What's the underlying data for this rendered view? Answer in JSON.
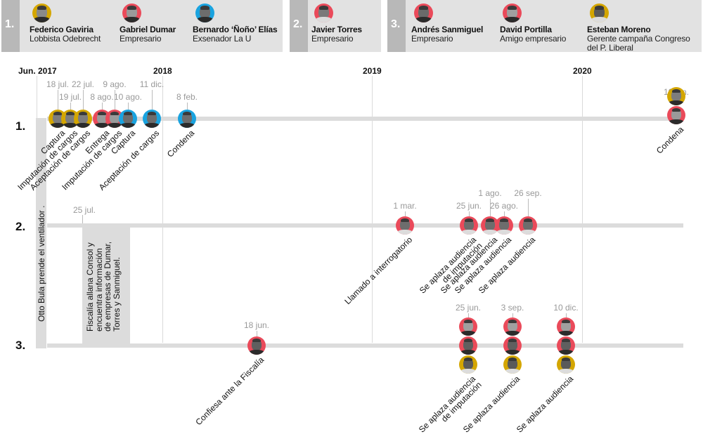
{
  "colors": {
    "gold": "#d4a600",
    "red": "#ea4a5a",
    "blue": "#1aa3df",
    "band": "#dcdcdc",
    "header_bg": "#e2e2e2",
    "number_bg": "#b8b8b8"
  },
  "groups": [
    {
      "number": "1.",
      "people": [
        {
          "name": "Federico Gaviria",
          "role": "Lobbista Odebrecht",
          "color": "gold"
        },
        {
          "name": "Gabriel Dumar",
          "role": "Empresario",
          "color": "red"
        },
        {
          "name": "Bernardo ‘Ñoño’ Elías",
          "role": "Exsenador La U",
          "color": "blue"
        }
      ]
    },
    {
      "number": "2.",
      "people": [
        {
          "name": "Javier Torres",
          "role": "Empresario",
          "color": "red"
        }
      ]
    },
    {
      "number": "3.",
      "people": [
        {
          "name": "Andrés Sanmiguel",
          "role": "Empresario",
          "color": "red"
        },
        {
          "name": "David Portilla",
          "role": "Amigo empresario",
          "color": "red"
        },
        {
          "name": "Esteban Moreno",
          "role": "Gerente campaña Congreso",
          "role2": "del P. Liberal",
          "color": "gold"
        }
      ]
    }
  ],
  "years": [
    "Jun. 2017",
    "2018",
    "2019",
    "2020"
  ],
  "rows": [
    "1.",
    "2.",
    "3."
  ],
  "band_events": {
    "otto": "Otto Bula prende el ventilador .",
    "fiscalia_date": "25 jul.",
    "fiscalia": [
      "Fiscalía allana Consol y",
      "encuentra información",
      "de empresas de Dumar,",
      "Torres y Sanmiguel."
    ]
  },
  "events_row1": [
    {
      "date": "18 jul.",
      "label": "Captura",
      "who": "gold"
    },
    {
      "date": "19 jul.",
      "label": "Imputación de cargos",
      "who": "gold"
    },
    {
      "date": "22 jul.",
      "label": "Aceptación de cargos",
      "who": "gold"
    },
    {
      "date": "8 ago.",
      "label": "Entrega",
      "who": "red"
    },
    {
      "date": "9 ago.",
      "label": "Imputación de cargos",
      "who": "red"
    },
    {
      "date": "10 ago.",
      "label": "Captura",
      "who": "blue"
    },
    {
      "date": "11 dic.",
      "label": "Aceptación de cargos",
      "who": "blue"
    },
    {
      "date": "8 feb.",
      "label": "Condena",
      "who": "blue"
    },
    {
      "date": "10 jun.",
      "label": "Condena",
      "who": "gold+red"
    }
  ],
  "events_row2": [
    {
      "date": "1 mar.",
      "label": "Llamado a interrogatorio"
    },
    {
      "date": "25 jun.",
      "label": "Se aplaza audiencia",
      "label2": "de imputación"
    },
    {
      "date": "1 ago.",
      "label": "Se aplaza audiencia"
    },
    {
      "date": "26 ago.",
      "label": "Se aplaza audiencia"
    },
    {
      "date": "26 sep.",
      "label": "Se aplaza audiencia"
    }
  ],
  "events_row3": [
    {
      "date": "18 jun.",
      "label": "Confiesa ante la Fiscalía"
    },
    {
      "date": "25 jun.",
      "label": "Se aplaza audiencia",
      "label2": "de imputación"
    },
    {
      "date": "3 sep.",
      "label": "Se aplaza audiencia"
    },
    {
      "date": "10 dic.",
      "label": "Se aplaza audiencia"
    }
  ]
}
